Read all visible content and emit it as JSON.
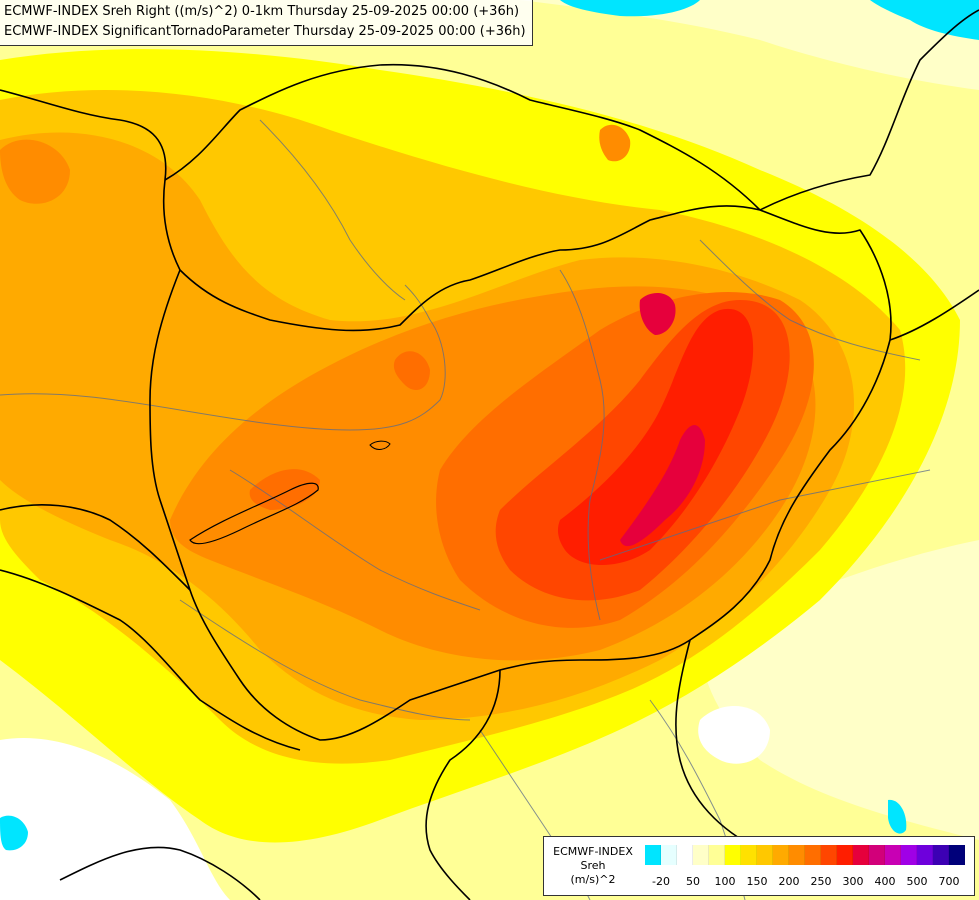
{
  "header": {
    "line1": "ECMWF-INDEX Sreh Right ((m/s)^2) 0-1km Thursday 25-09-2025 00:00 (+36h)",
    "line2": "ECMWF-INDEX SignificantTornadoParameter Thursday 25-09-2025 00:00 (+36h)"
  },
  "legend": {
    "title": "ECMWF-INDEX",
    "subtitle": "Sreh",
    "units": "(m/s)^2",
    "colors": [
      "#00e5ff",
      "#e6ffff",
      "#ffffff",
      "#ffffc8",
      "#ffff96",
      "#ffff00",
      "#ffe100",
      "#ffc800",
      "#ffaa00",
      "#ff8c00",
      "#ff6e00",
      "#ff4600",
      "#ff1e00",
      "#e6003c",
      "#d2007a",
      "#c800b4",
      "#a000e6",
      "#6e00dc",
      "#3c00b4",
      "#00007a"
    ],
    "ticks": [
      "-20",
      "50",
      "100",
      "150",
      "200",
      "250",
      "300",
      "400",
      "500",
      "700"
    ]
  },
  "palette": {
    "water": "#00e5ff",
    "low": "#ffffc8",
    "yellow": "#ffff00",
    "orange": "#ff8c00",
    "red": "#ff1e00",
    "magenta": "#e6003c"
  }
}
